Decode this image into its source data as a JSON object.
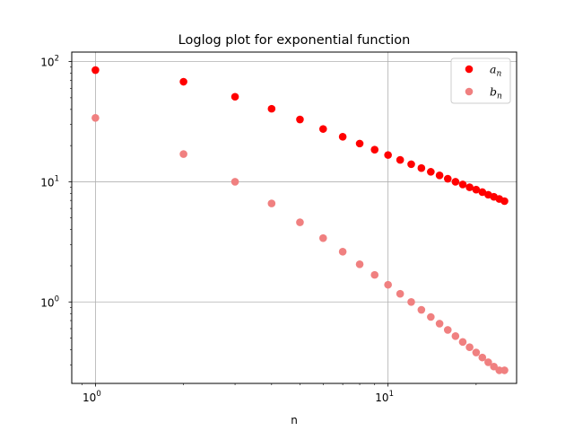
{
  "chart_data": {
    "type": "scatter",
    "title": "Loglog plot for exponential function",
    "xlabel": "n",
    "ylabel": "",
    "xscale": "log",
    "yscale": "log",
    "xlim": [
      0.83,
      27.5
    ],
    "ylim": [
      0.21,
      120
    ],
    "grid": true,
    "legend_position": "top-right",
    "x_ticks": [
      {
        "base": "10",
        "exp": "0",
        "value": 1
      },
      {
        "base": "10",
        "exp": "1",
        "value": 10
      }
    ],
    "y_ticks": [
      {
        "base": "10",
        "exp": "0",
        "value": 1
      },
      {
        "base": "10",
        "exp": "1",
        "value": 10
      },
      {
        "base": "10",
        "exp": "2",
        "value": 100
      }
    ],
    "x": [
      1,
      2,
      3,
      4,
      5,
      6,
      7,
      8,
      9,
      10,
      11,
      12,
      13,
      14,
      15,
      16,
      17,
      18,
      19,
      20,
      21,
      22,
      23,
      24,
      25
    ],
    "series": [
      {
        "name": "a_n",
        "legend_main": "a",
        "legend_sub": "n",
        "color": "#ff0000",
        "values": [
          85.0,
          68.0,
          51.0,
          40.5,
          33.0,
          27.5,
          23.7,
          20.8,
          18.5,
          16.7,
          15.2,
          14.0,
          13.0,
          12.1,
          11.3,
          10.6,
          10.0,
          9.5,
          9.0,
          8.6,
          8.2,
          7.8,
          7.5,
          7.2,
          6.9
        ]
      },
      {
        "name": "b_n",
        "legend_main": "b",
        "legend_sub": "n",
        "color": "#f08080",
        "values": [
          34.0,
          17.0,
          10.0,
          6.6,
          4.6,
          3.4,
          2.62,
          2.06,
          1.68,
          1.39,
          1.17,
          1.0,
          0.86,
          0.75,
          0.66,
          0.585,
          0.52,
          0.465,
          0.42,
          0.38,
          0.345,
          0.315,
          0.29,
          0.27,
          0.27
        ]
      }
    ]
  }
}
